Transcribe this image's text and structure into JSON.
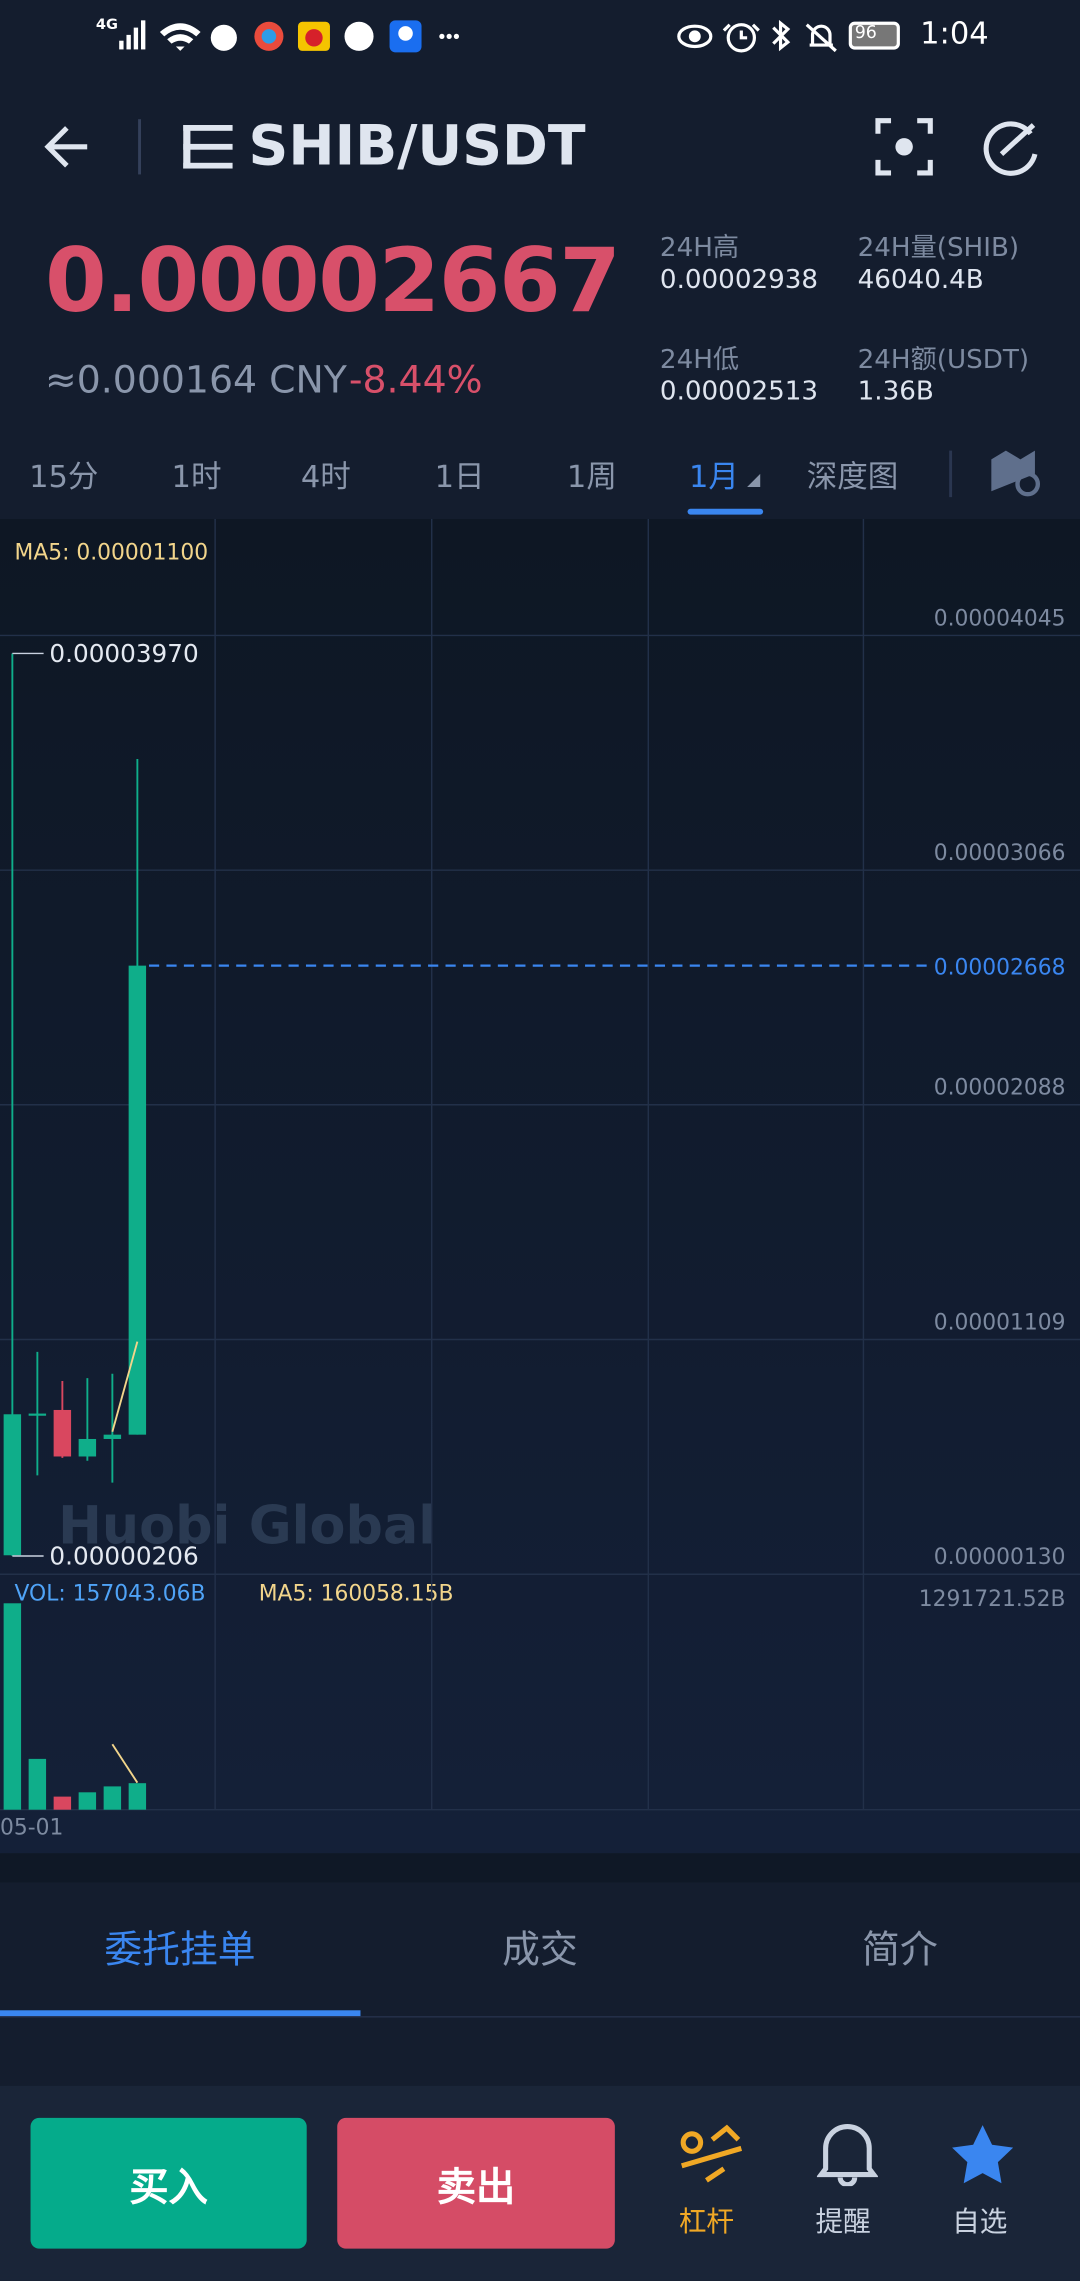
{
  "status_bar": {
    "network": "4G",
    "battery": "96",
    "time": "1:04"
  },
  "header": {
    "pair": "SHIB/USDT"
  },
  "ticker": {
    "price": "0.00002667",
    "cny": "≈0.000164 CNY",
    "change": "-8.44%",
    "stats": [
      {
        "label": "24H高",
        "value": "0.00002938"
      },
      {
        "label": "24H量(SHIB)",
        "value": "46040.4B"
      },
      {
        "label": "24H低",
        "value": "0.00002513"
      },
      {
        "label": "24H额(USDT)",
        "value": "1.36B"
      }
    ]
  },
  "intervals": {
    "items": [
      "15分",
      "1时",
      "4时",
      "1日",
      "1周",
      "1月",
      "深度图"
    ],
    "active": 5
  },
  "chart": {
    "ma_label": "MA5: 0.00001100",
    "watermark": "Huobi Global",
    "ylim": [
      1.3e-06,
      4.531e-05
    ],
    "yticks": [
      {
        "value": 4.045e-05,
        "label": "0.00004045"
      },
      {
        "value": 3.066e-05,
        "label": "0.00003066"
      },
      {
        "value": 2.088e-05,
        "label": "0.00002088"
      },
      {
        "value": 1.109e-05,
        "label": "0.00001109"
      },
      {
        "value": 1.3e-06,
        "label": "0.00000130"
      }
    ],
    "last_price": {
      "value": 2.668e-05,
      "label": "0.00002668"
    },
    "high_label": "0.00003970",
    "low_label": "0.00000206",
    "candles": {
      "open": [
        2.09e-06,
        7.97e-06,
        8.15e-06,
        6.21e-06,
        6.94e-06,
        7.12e-06
      ],
      "high": [
        3.97e-05,
        1.057e-05,
        9.36e-06,
        9.48e-06,
        9.66e-06,
        3.53e-05
      ],
      "low": [
        2.06e-06,
        5.42e-06,
        6.15e-06,
        6.03e-06,
        5.12e-06,
        7.12e-06
      ],
      "close": [
        7.97e-06,
        8e-06,
        6.21e-06,
        6.94e-06,
        7.12e-06,
        2.668e-05
      ]
    },
    "ma5": [
      null,
      null,
      null,
      null,
      7.24e-06,
      1.1e-05
    ],
    "vol_label": "VOL: 157043.06B",
    "vol_ma_label": "MA5: 160058.15B",
    "vol_ylim": [
      0,
      1291721.52
    ],
    "vol_ticks": [
      {
        "value": 1291721.52,
        "label": "1291721.52B"
      }
    ],
    "volume": [
      1222800,
      301000,
      77500,
      103000,
      138000,
      157043.06
    ],
    "vol_ma5": [
      null,
      null,
      null,
      null,
      387500,
      160058.15
    ],
    "x_label": "05-01"
  },
  "tabs": {
    "items": [
      "委托挂单",
      "成交",
      "简介"
    ],
    "active": 0
  },
  "actions": {
    "buy": "买入",
    "sell": "卖出",
    "nav": [
      "杠杆",
      "提醒",
      "自选"
    ]
  }
}
